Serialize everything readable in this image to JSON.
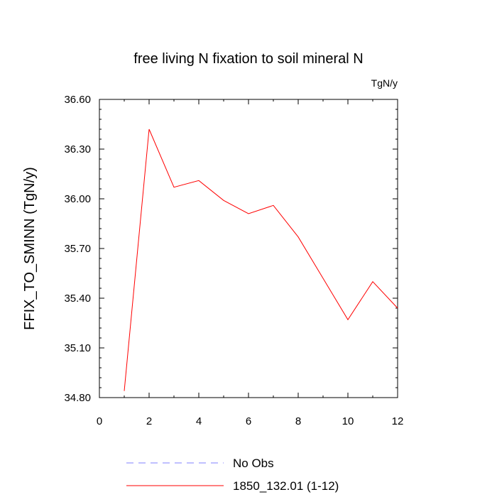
{
  "chart_data": {
    "type": "line",
    "title": "free living N fixation to soil mineral N",
    "units_label": "TgN/y",
    "xlabel": "",
    "ylabel": "FFIX_TO_SMINN  (TgN/y)",
    "xlim": [
      0,
      12
    ],
    "ylim": [
      34.8,
      36.6
    ],
    "x_ticks": [
      "0",
      "2",
      "4",
      "6",
      "8",
      "10",
      "12"
    ],
    "y_ticks": [
      "34.80",
      "35.10",
      "35.40",
      "35.70",
      "36.00",
      "36.30",
      "36.60"
    ],
    "grid": false,
    "legend_position": "bottom",
    "series": [
      {
        "name": "No Obs",
        "color": "#8080ff",
        "dash": "dashed",
        "x": [],
        "y": []
      },
      {
        "name": "1850_132.01 (1-12)",
        "color": "#ff0000",
        "dash": "solid",
        "x": [
          1,
          2,
          3,
          4,
          5,
          6,
          7,
          8,
          9,
          10,
          11,
          12
        ],
        "y": [
          34.84,
          36.42,
          36.07,
          36.11,
          35.99,
          35.91,
          35.96,
          35.77,
          35.52,
          35.27,
          35.5,
          35.34
        ]
      }
    ]
  }
}
